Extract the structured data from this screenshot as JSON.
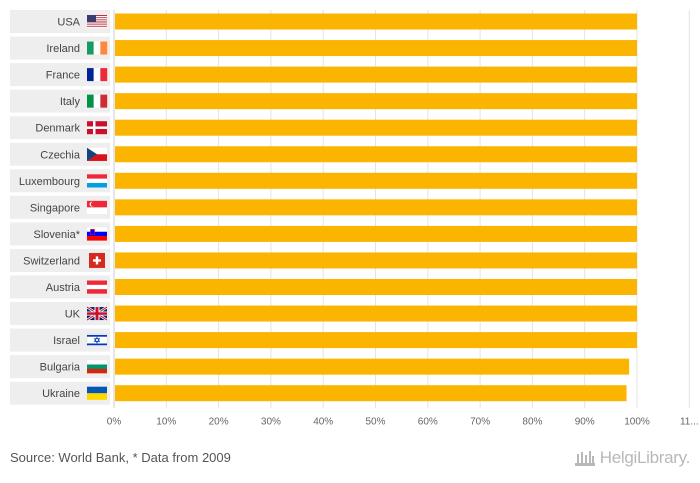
{
  "chart_data": {
    "type": "bar",
    "orientation": "horizontal",
    "categories": [
      "USA",
      "Ireland",
      "France",
      "Italy",
      "Denmark",
      "Czechia",
      "Luxembourg",
      "Singapore",
      "Slovenia*",
      "Switzerland",
      "Austria",
      "UK",
      "Israel",
      "Bulgaria",
      "Ukraine"
    ],
    "flags": [
      "us",
      "ie",
      "fr",
      "it",
      "dk",
      "cz",
      "lu",
      "sg",
      "si",
      "ch",
      "at",
      "uk",
      "il",
      "bg",
      "ua"
    ],
    "values": [
      100,
      100,
      100,
      100,
      100,
      100,
      100,
      100,
      100,
      100,
      100,
      100,
      100,
      98.5,
      98
    ],
    "xlim": [
      0,
      110
    ],
    "x_ticks": [
      "0%",
      "10%",
      "20%",
      "30%",
      "40%",
      "50%",
      "60%",
      "70%",
      "80%",
      "90%",
      "100%",
      "11..."
    ],
    "bar_color": "#FBB500",
    "grid": true
  },
  "footer": {
    "source": "Source: World Bank, * Data from 2009",
    "brand": "HelgiLibrary."
  }
}
